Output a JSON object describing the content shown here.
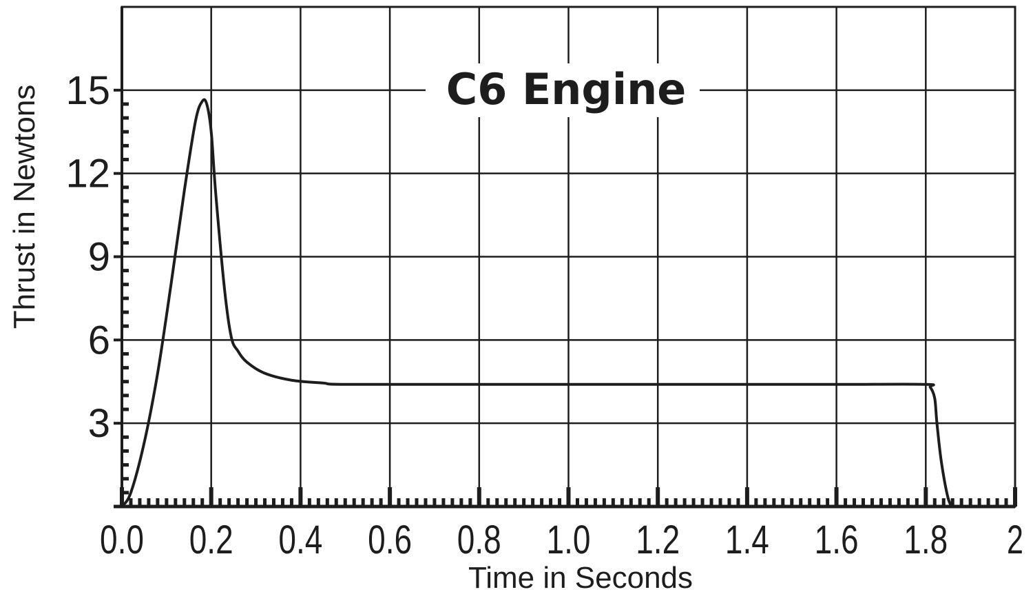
{
  "chart_data": {
    "type": "line",
    "title": "C6 Engine",
    "xlabel": "Time in Seconds",
    "ylabel": "Thrust in Newtons",
    "xlim": [
      0,
      2
    ],
    "ylim": [
      0,
      18
    ],
    "xticks": [
      "0.0",
      "0.2",
      "0.4",
      "0.6",
      "0.8",
      "1.0",
      "1.2",
      "1.4",
      "1.6",
      "1.8",
      "2"
    ],
    "yticks": [
      "3",
      "6",
      "9",
      "12",
      "15"
    ],
    "grid": true,
    "series": [
      {
        "color": "#1d1d1d",
        "x": [
          0.0,
          0.02,
          0.05,
          0.08,
          0.11,
          0.14,
          0.165,
          0.18,
          0.19,
          0.2,
          0.21,
          0.23,
          0.245,
          0.26,
          0.28,
          0.32,
          0.38,
          0.45,
          0.5,
          0.8,
          1.2,
          1.6,
          1.8,
          1.81,
          1.82,
          1.825,
          1.835,
          1.85,
          1.86
        ],
        "y": [
          0.0,
          0.5,
          2.3,
          4.8,
          8.0,
          11.4,
          13.9,
          14.6,
          14.5,
          13.5,
          11.3,
          7.8,
          6.1,
          5.6,
          5.2,
          4.8,
          4.55,
          4.45,
          4.4,
          4.4,
          4.4,
          4.4,
          4.4,
          4.3,
          3.9,
          3.0,
          1.6,
          0.3,
          0.0
        ]
      }
    ]
  }
}
